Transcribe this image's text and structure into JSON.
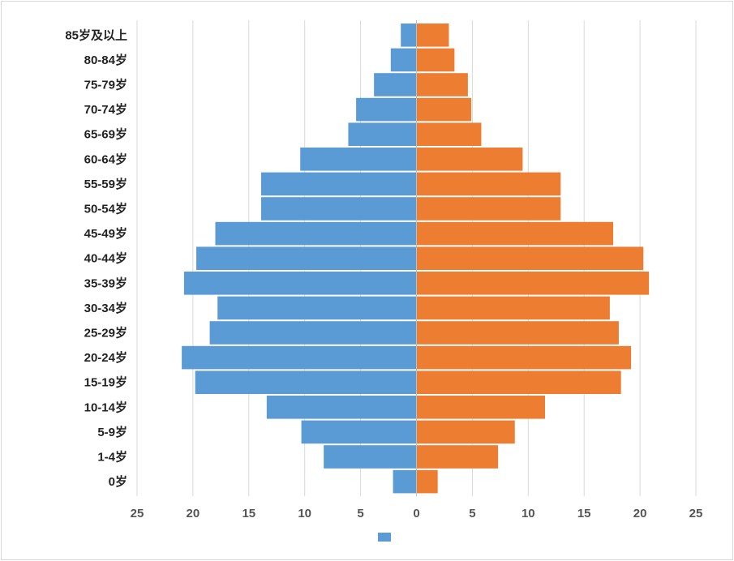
{
  "chart_data": {
    "type": "bar",
    "orientation": "horizontal",
    "layout": "population-pyramid",
    "categories": [
      "0岁",
      "1-4岁",
      "5-9岁",
      "10-14岁",
      "15-19岁",
      "20-24岁",
      "25-29岁",
      "30-34岁",
      "35-39岁",
      "40-44岁",
      "45-49岁",
      "50-54岁",
      "55-59岁",
      "60-64岁",
      "65-69岁",
      "70-74岁",
      "75-79岁",
      "80-84岁",
      "85岁及以上"
    ],
    "series": [
      {
        "color": "#5b9bd5",
        "side": "left",
        "values": [
          2.1,
          8.3,
          10.3,
          13.4,
          19.8,
          21.0,
          18.5,
          17.8,
          20.8,
          19.7,
          18.0,
          13.9,
          13.9,
          10.4,
          6.1,
          5.4,
          3.8,
          2.3,
          1.4
        ]
      },
      {
        "color": "#ed7d31",
        "side": "right",
        "values": [
          1.9,
          7.3,
          8.8,
          11.5,
          18.3,
          19.2,
          18.1,
          17.3,
          20.8,
          20.3,
          17.6,
          12.9,
          12.9,
          9.5,
          5.8,
          4.9,
          4.6,
          3.4,
          2.9
        ]
      }
    ],
    "xticks": [
      "25",
      "20",
      "15",
      "10",
      "5",
      "0",
      "5",
      "10",
      "15",
      "20",
      "25"
    ],
    "xlim": [
      -25,
      25
    ],
    "grid": true,
    "legend_position": "bottom"
  }
}
